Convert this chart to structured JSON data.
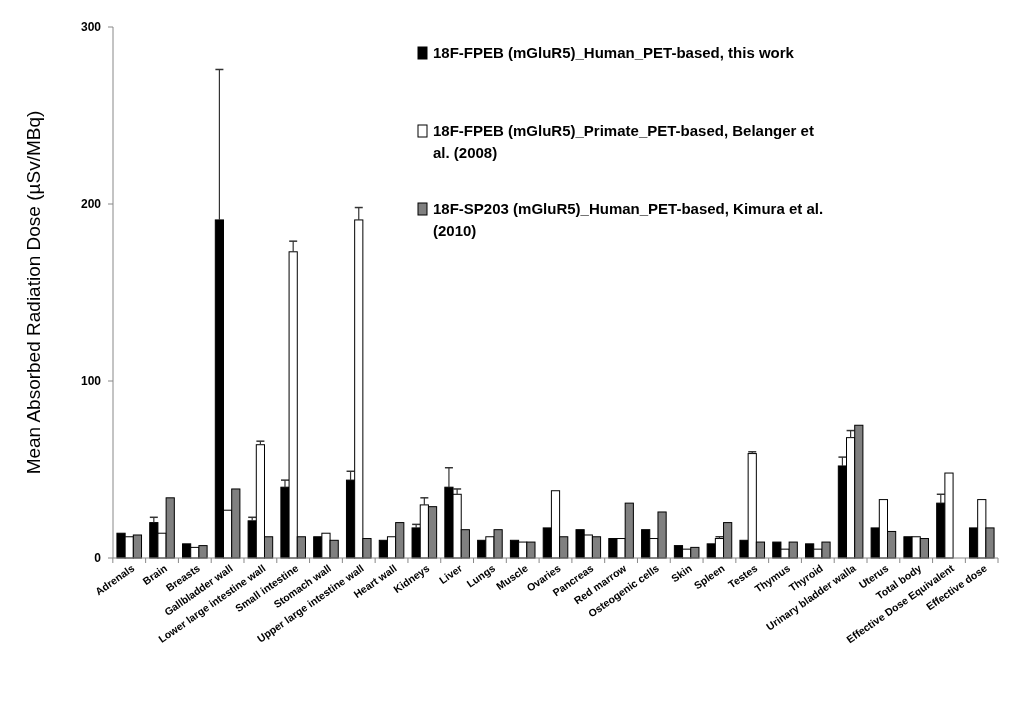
{
  "chart_data": {
    "type": "bar",
    "ylabel": "Mean Absorbed Radiation Dose (µSv/MBq)",
    "categories": [
      "Adrenals",
      "Brain",
      "Breasts",
      "Gallbladder wall",
      "Lower large intestine wall",
      "Small intestine",
      "Stomach wall",
      "Upper large intestine wall",
      "Heart wall",
      "Kidneys",
      "Liver",
      "Lungs",
      "Muscle",
      "Ovaries",
      "Pancreas",
      "Red marrow",
      "Osteogenic cells",
      "Skin",
      "Spleen",
      "Testes",
      "Thymus",
      "Thyroid",
      "Urinary bladder walla",
      "Uterus",
      "Total body",
      "Effective Dose Equivalent",
      "Effective dose"
    ],
    "ylim": [
      0,
      300
    ],
    "yticks": [
      0,
      100,
      200,
      300
    ],
    "grid": false,
    "legend": "top right",
    "series": [
      {
        "name": "18F-FPEB (mGluR5)_Human_PET-based, this work",
        "color": "#000000",
        "values": [
          14,
          20,
          8,
          191,
          21,
          40,
          12,
          44,
          10,
          17,
          40,
          10,
          10,
          17,
          16,
          11,
          16,
          7,
          8,
          10,
          9,
          8,
          52,
          17,
          12,
          31,
          17
        ],
        "errors": [
          null,
          3,
          null,
          85,
          2,
          4,
          null,
          5,
          null,
          2,
          11,
          null,
          null,
          null,
          null,
          null,
          null,
          null,
          null,
          null,
          null,
          null,
          5,
          null,
          null,
          5,
          null
        ]
      },
      {
        "name": "18F-FPEB (mGluR5)_Primate_PET-based, Belanger et al. (2008)",
        "color": "#ffffff",
        "values": [
          12,
          14,
          6,
          27,
          64,
          173,
          14,
          191,
          12,
          30,
          36,
          12,
          9,
          38,
          13,
          11,
          11,
          5,
          11,
          59,
          5,
          5,
          68,
          33,
          12,
          48,
          33
        ],
        "errors": [
          null,
          null,
          null,
          null,
          2,
          6,
          null,
          7,
          null,
          4,
          3,
          null,
          null,
          null,
          null,
          null,
          null,
          null,
          1,
          1,
          null,
          null,
          4,
          null,
          null,
          null,
          null
        ]
      },
      {
        "name": "18F-SP203 (mGluR5)_Human_PET-based, Kimura et al. (2010)",
        "color": "#808080",
        "values": [
          13,
          34,
          7,
          39,
          12,
          12,
          10,
          11,
          20,
          29,
          16,
          16,
          9,
          12,
          12,
          31,
          26,
          6,
          20,
          9,
          9,
          9,
          75,
          15,
          11,
          null,
          17
        ]
      }
    ]
  }
}
